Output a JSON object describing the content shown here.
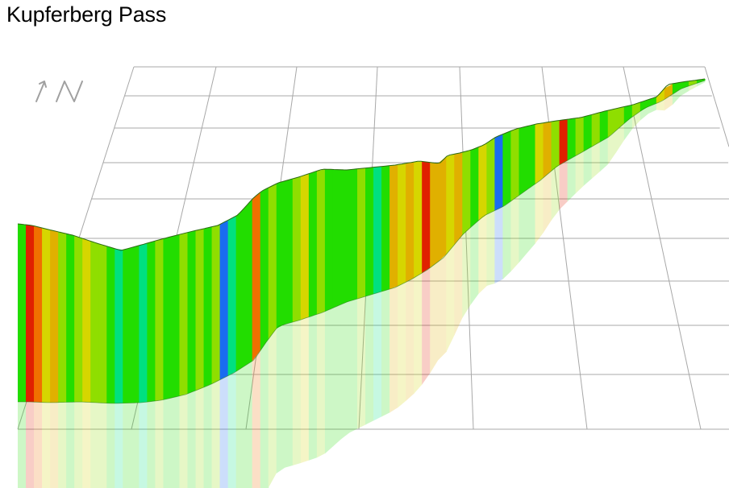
{
  "title": "Kupferberg Pass",
  "icons": {
    "north": "north-arrow-icon"
  },
  "colors": {
    "grid": "#a8a8a8",
    "north_icon": "#a0a0a0",
    "gradient_scale": [
      "#1a6cf0",
      "#00c8c8",
      "#00e080",
      "#22dd00",
      "#8fde00",
      "#d6d600",
      "#e0b000",
      "#f07000",
      "#e02000"
    ]
  }
}
